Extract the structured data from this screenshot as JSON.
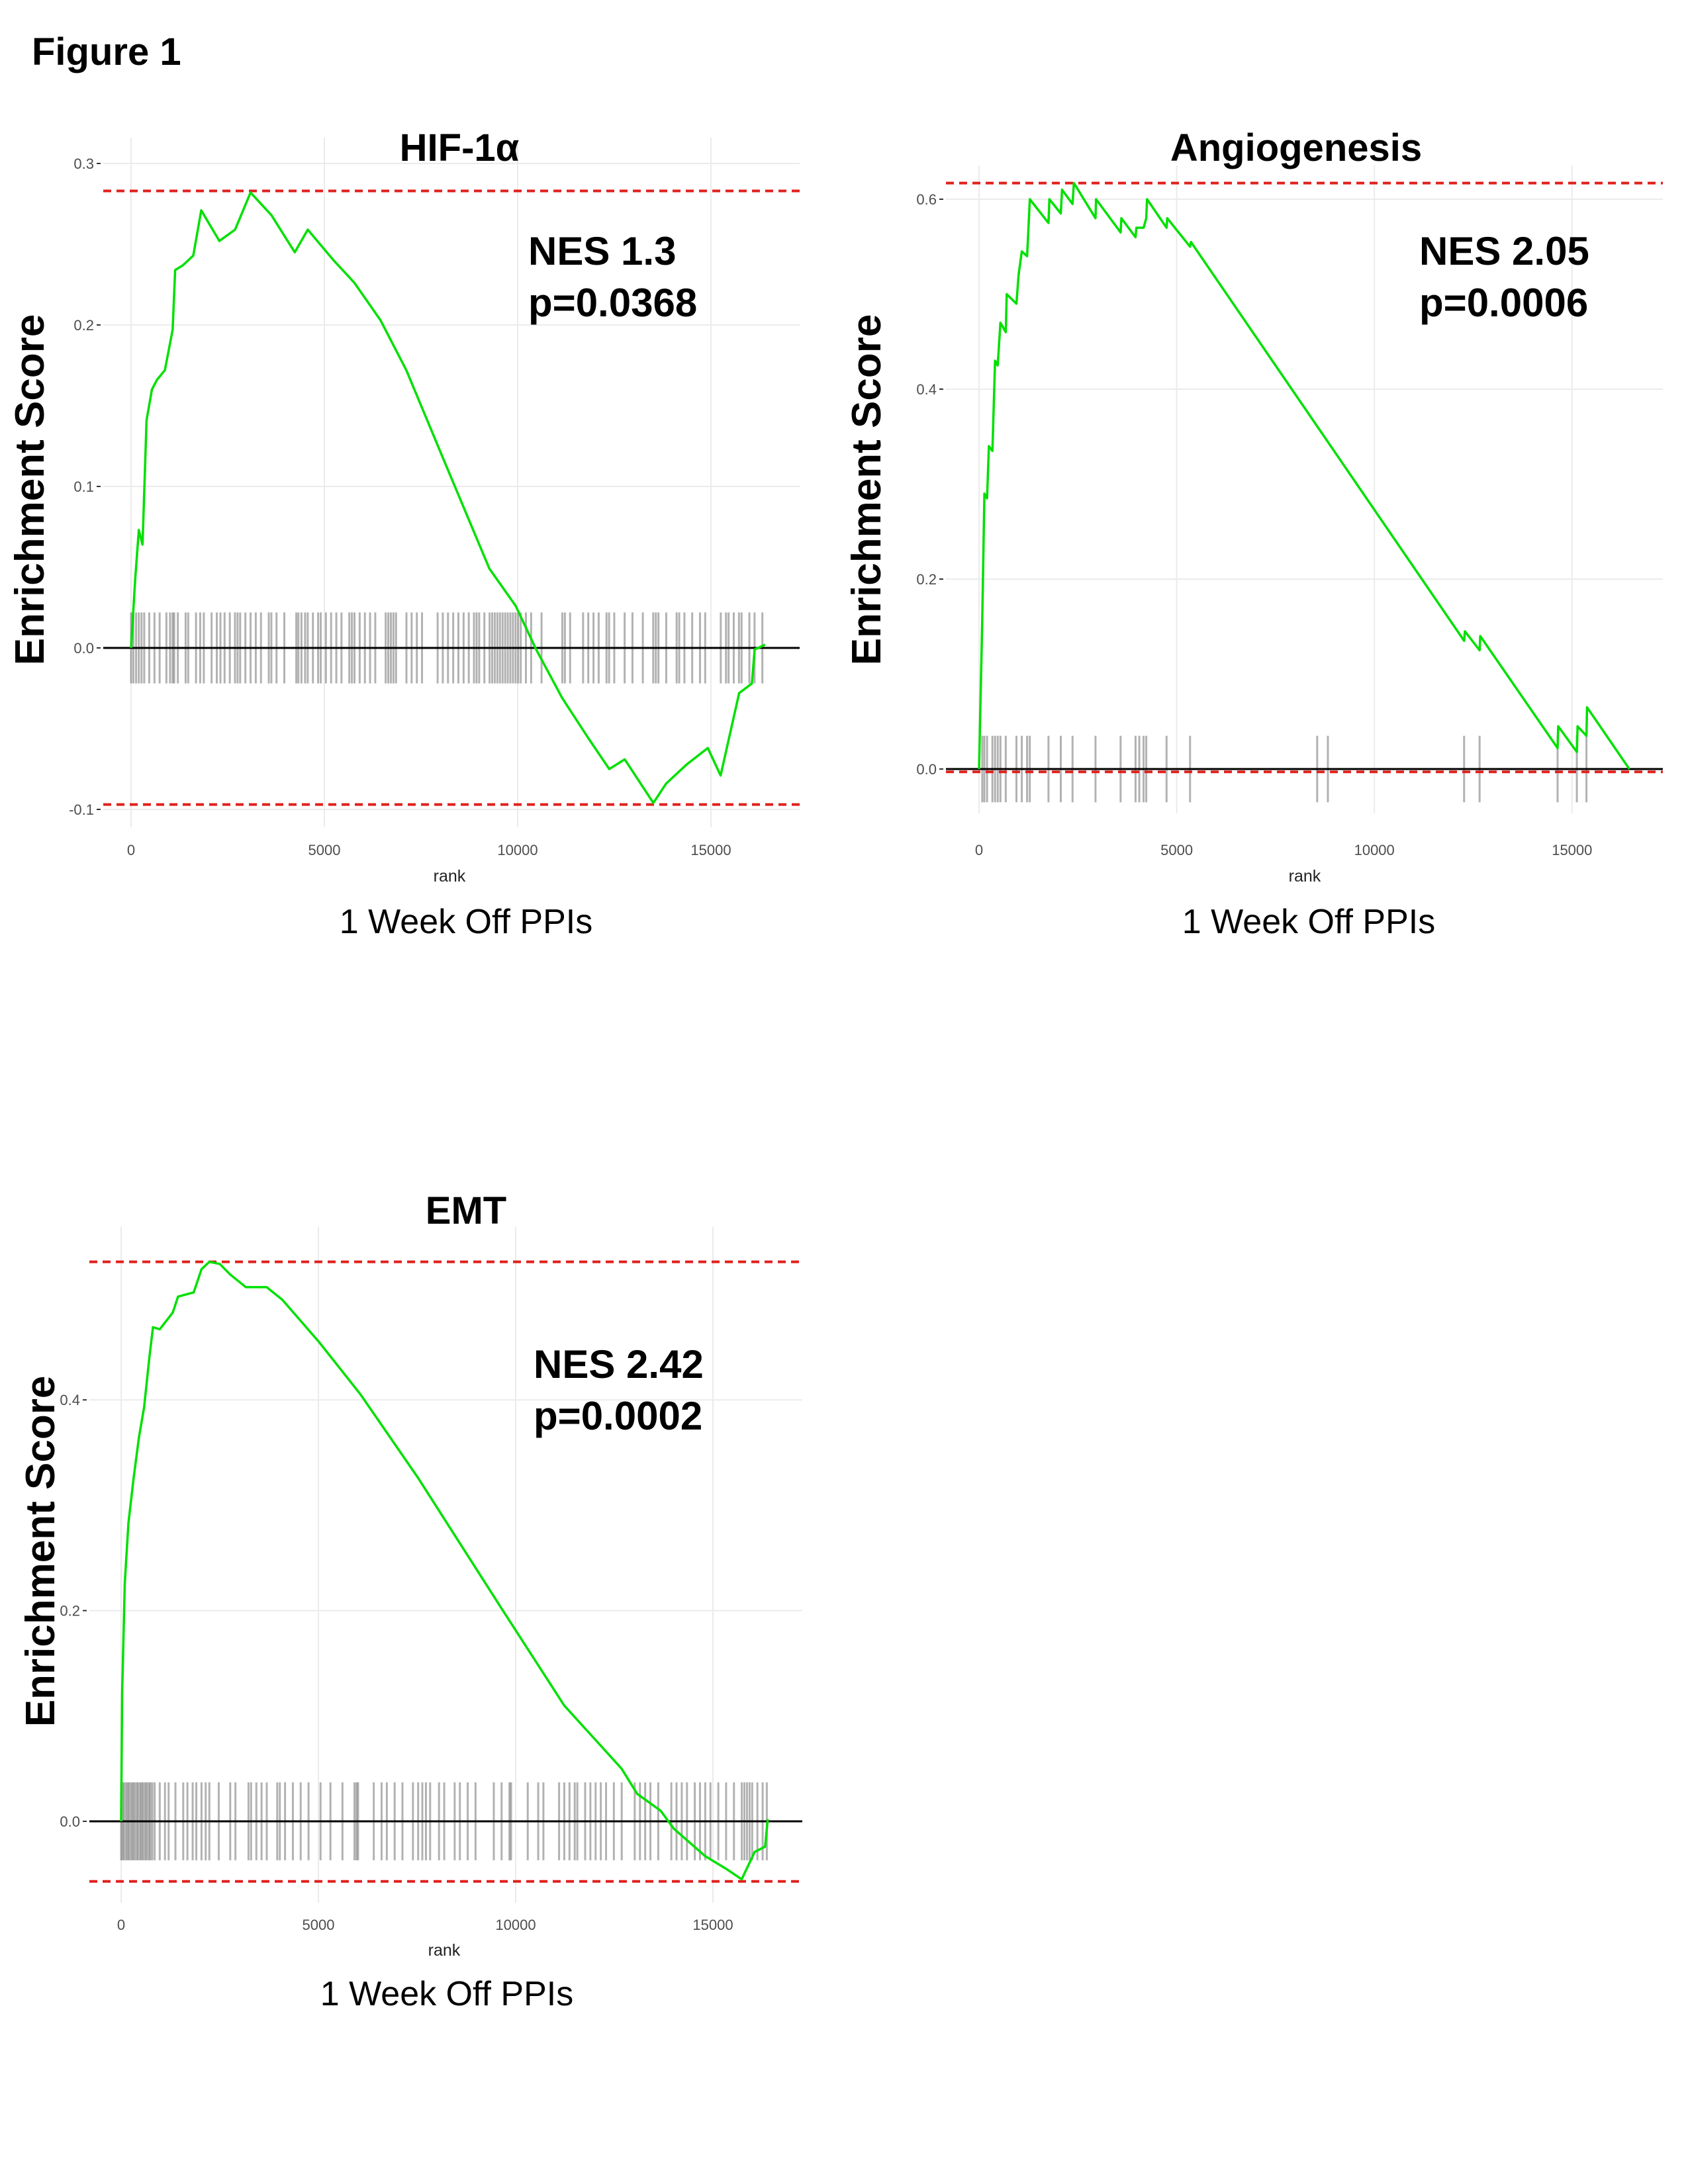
{
  "figure_label": "Figure 1",
  "chart_data": [
    {
      "type": "line",
      "title": "HIF-1α",
      "xlabel": "rank",
      "ylabel": "Enrichment Score",
      "caption": "1 Week Off PPIs",
      "nes": "NES  1.3",
      "pvalue": "p=0.0368",
      "xlim": [
        -1000,
        17500
      ],
      "ylim": [
        -0.11,
        0.31
      ],
      "xticks": [
        0,
        5000,
        10000,
        15000
      ],
      "yticks": [
        -0.1,
        0.0,
        0.1,
        0.2,
        0.3
      ],
      "ytick_labels": [
        "-0.1",
        "0.0",
        "0.1",
        "0.2",
        "0.3"
      ],
      "grid": true,
      "es_max_line": 0.283,
      "es_min_line": -0.097,
      "hit_band": 0.022,
      "colors": {
        "curve": "#00e000",
        "dashed": "#e0201c",
        "hits": "#000000",
        "zero": "#000000",
        "grid": "#ebebeb"
      },
      "hits": [
        0,
        60,
        130,
        200,
        270,
        340,
        470,
        605,
        739,
        914,
        1008,
        1075,
        1116,
        1210,
        1411,
        1478,
        1680,
        1788,
        1882,
        2083,
        2218,
        2312,
        2419,
        2554,
        2688,
        2755,
        2822,
        2957,
        3091,
        3226,
        3360,
        3562,
        3629,
        3763,
        3965,
        4274,
        4328,
        4408,
        4502,
        4570,
        4704,
        4838,
        4906,
        5040,
        5174,
        5309,
        5443,
        5645,
        5712,
        5779,
        5914,
        6048,
        6182,
        6317,
        6586,
        6653,
        6720,
        6787,
        6854,
        7123,
        7258,
        7392,
        7526,
        7930,
        8064,
        8198,
        8333,
        8467,
        8602,
        8736,
        8870,
        8938,
        9005,
        9139,
        9274,
        9341,
        9408,
        9475,
        9542,
        9610,
        9677,
        9744,
        9811,
        9878,
        9946,
        10013,
        10080,
        10214,
        10349,
        10618,
        11155,
        11222,
        11357,
        11693,
        11827,
        11962,
        12096,
        12298,
        12365,
        12499,
        12768,
        12970,
        13238,
        13507,
        13574,
        13642,
        13843,
        14112,
        14179,
        14314,
        14515,
        14717,
        14851,
        15254,
        15389,
        15456,
        15590,
        15725,
        15792,
        15994,
        16128,
        16330
      ],
      "curve": [
        [
          0,
          0
        ],
        [
          108,
          0.043
        ],
        [
          200,
          0.073
        ],
        [
          296,
          0.064
        ],
        [
          400,
          0.141
        ],
        [
          540,
          0.16
        ],
        [
          670,
          0.166
        ],
        [
          875,
          0.172
        ],
        [
          1075,
          0.197
        ],
        [
          1140,
          0.234
        ],
        [
          1345,
          0.237
        ],
        [
          1610,
          0.243
        ],
        [
          1815,
          0.271
        ],
        [
          2285,
          0.252
        ],
        [
          2690,
          0.259
        ],
        [
          3090,
          0.282
        ],
        [
          3630,
          0.268
        ],
        [
          4235,
          0.245
        ],
        [
          4570,
          0.259
        ],
        [
          5240,
          0.24
        ],
        [
          5780,
          0.226
        ],
        [
          6450,
          0.203
        ],
        [
          7120,
          0.172
        ],
        [
          8200,
          0.11
        ],
        [
          9270,
          0.049
        ],
        [
          9950,
          0.026
        ],
        [
          10480,
          -0.001
        ],
        [
          11150,
          -0.031
        ],
        [
          11830,
          -0.056
        ],
        [
          12370,
          -0.075
        ],
        [
          12770,
          -0.069
        ],
        [
          13510,
          -0.096
        ],
        [
          13840,
          -0.084
        ],
        [
          14380,
          -0.072
        ],
        [
          14920,
          -0.062
        ],
        [
          15250,
          -0.079
        ],
        [
          15730,
          -0.028
        ],
        [
          16060,
          -0.022
        ],
        [
          16130,
          -0.001
        ],
        [
          16400,
          0.002
        ]
      ]
    },
    {
      "type": "line",
      "title": "Angiogenesis",
      "xlabel": "rank",
      "ylabel": "Enrichment Score",
      "caption": "1 Week Off PPIs",
      "nes": "NES  2.05",
      "pvalue": "p=0.0006",
      "xlim": [
        -800,
        17300
      ],
      "ylim": [
        -0.05,
        0.64
      ],
      "xticks": [
        0,
        5000,
        10000,
        15000
      ],
      "yticks": [
        0.0,
        0.2,
        0.4,
        0.6
      ],
      "ytick_labels": [
        "0.0",
        "0.2",
        "0.4",
        "0.6"
      ],
      "grid": true,
      "es_max_line": 0.617,
      "es_min_line": -0.003,
      "hit_band": 0.035,
      "colors": {
        "curve": "#00e000",
        "dashed": "#e0201c",
        "hits": "#000000",
        "zero": "#000000",
        "grid": "#ebebeb"
      },
      "hits": [
        81,
        135,
        203,
        338,
        405,
        473,
        541,
        676,
        946,
        1081,
        1216,
        1284,
        1757,
        2068,
        2365,
        2946,
        3581,
        3959,
        4054,
        4162,
        4230,
        4743,
        5338,
        8554,
        8824,
        12270,
        12662,
        14635,
        15122,
        15365
      ],
      "curve": [
        [
          0,
          0
        ],
        [
          81,
          0.155
        ],
        [
          135,
          0.29
        ],
        [
          203,
          0.285
        ],
        [
          250,
          0.34
        ],
        [
          338,
          0.335
        ],
        [
          405,
          0.43
        ],
        [
          473,
          0.425
        ],
        [
          541,
          0.47
        ],
        [
          676,
          0.46
        ],
        [
          700,
          0.5
        ],
        [
          946,
          0.49
        ],
        [
          1000,
          0.52
        ],
        [
          1081,
          0.545
        ],
        [
          1216,
          0.54
        ],
        [
          1250,
          0.57
        ],
        [
          1284,
          0.6
        ],
        [
          1757,
          0.575
        ],
        [
          1780,
          0.6
        ],
        [
          2068,
          0.585
        ],
        [
          2100,
          0.61
        ],
        [
          2365,
          0.595
        ],
        [
          2400,
          0.617
        ],
        [
          2946,
          0.58
        ],
        [
          2960,
          0.6
        ],
        [
          3581,
          0.565
        ],
        [
          3600,
          0.58
        ],
        [
          3959,
          0.56
        ],
        [
          3980,
          0.57
        ],
        [
          4162,
          0.57
        ],
        [
          4230,
          0.58
        ],
        [
          4250,
          0.6
        ],
        [
          4743,
          0.57
        ],
        [
          4760,
          0.58
        ],
        [
          5338,
          0.55
        ],
        [
          5360,
          0.555
        ],
        [
          12270,
          0.135
        ],
        [
          12290,
          0.145
        ],
        [
          12662,
          0.125
        ],
        [
          12680,
          0.14
        ],
        [
          14635,
          0.022
        ],
        [
          14650,
          0.045
        ],
        [
          15122,
          0.018
        ],
        [
          15140,
          0.045
        ],
        [
          15365,
          0.035
        ],
        [
          15380,
          0.065
        ],
        [
          16450,
          0.0
        ]
      ]
    },
    {
      "type": "line",
      "title": "EMT",
      "xlabel": "rank",
      "ylabel": "Enrichment Score",
      "caption": "1 Week Off PPIs",
      "nes": "NES  2.42",
      "pvalue": "p=0.0002",
      "xlim": [
        -800,
        17300
      ],
      "ylim": [
        -0.08,
        0.56
      ],
      "xticks": [
        0,
        5000,
        10000,
        15000
      ],
      "yticks": [
        0.0,
        0.2,
        0.4
      ],
      "ytick_labels": [
        "0.0",
        "0.2",
        "0.4"
      ],
      "grid": true,
      "es_max_line": 0.531,
      "es_min_line": -0.057,
      "hit_band": 0.037,
      "colors": {
        "curve": "#00e000",
        "dashed": "#e0201c",
        "hits": "#000000",
        "zero": "#000000",
        "grid": "#ebebeb"
      },
      "hits": [
        0,
        40,
        80,
        130,
        170,
        210,
        260,
        300,
        340,
        390,
        430,
        480,
        520,
        560,
        610,
        650,
        700,
        740,
        790,
        850,
        979,
        1111,
        1204,
        1376,
        1574,
        1680,
        1813,
        1905,
        2037,
        2143,
        2236,
        2474,
        2765,
        2897,
        3228,
        3294,
        3427,
        3559,
        3691,
        3956,
        4022,
        4154,
        4353,
        4551,
        4750,
        5054,
        5305,
        5610,
        5914,
        5967,
        6006,
        6403,
        6602,
        6734,
        6933,
        7131,
        7396,
        7528,
        7634,
        7726,
        7832,
        8057,
        8189,
        8454,
        8586,
        8785,
        8983,
        9446,
        9644,
        9843,
        9883,
        10306,
        10571,
        10703,
        11100,
        11232,
        11364,
        11497,
        11563,
        11761,
        11894,
        12026,
        12158,
        12291,
        12489,
        12688,
        13018,
        13151,
        13283,
        13415,
        13614,
        13945,
        14077,
        14210,
        14342,
        14540,
        14672,
        14805,
        14937,
        15136,
        15334,
        15533,
        15731,
        15797,
        15863,
        15929,
        15995,
        16127,
        16260,
        16366
      ],
      "curve": [
        [
          0,
          0
        ],
        [
          26,
          0.121
        ],
        [
          93,
          0.226
        ],
        [
          185,
          0.283
        ],
        [
          317,
          0.326
        ],
        [
          450,
          0.364
        ],
        [
          582,
          0.393
        ],
        [
          714,
          0.44
        ],
        [
          807,
          0.469
        ],
        [
          979,
          0.467
        ],
        [
          1310,
          0.483
        ],
        [
          1442,
          0.498
        ],
        [
          1839,
          0.502
        ],
        [
          2037,
          0.524
        ],
        [
          2235,
          0.531
        ],
        [
          2500,
          0.529
        ],
        [
          2765,
          0.519
        ],
        [
          3161,
          0.507
        ],
        [
          3690,
          0.507
        ],
        [
          4087,
          0.495
        ],
        [
          5013,
          0.455
        ],
        [
          6071,
          0.405
        ],
        [
          7526,
          0.326
        ],
        [
          9643,
          0.202
        ],
        [
          11230,
          0.11
        ],
        [
          12685,
          0.05
        ],
        [
          13082,
          0.026
        ],
        [
          13677,
          0.01
        ],
        [
          14008,
          -0.007
        ],
        [
          14802,
          -0.033
        ],
        [
          15331,
          -0.045
        ],
        [
          15728,
          -0.055
        ],
        [
          16058,
          -0.029
        ],
        [
          16323,
          -0.024
        ],
        [
          16389,
          0.002
        ]
      ]
    }
  ]
}
